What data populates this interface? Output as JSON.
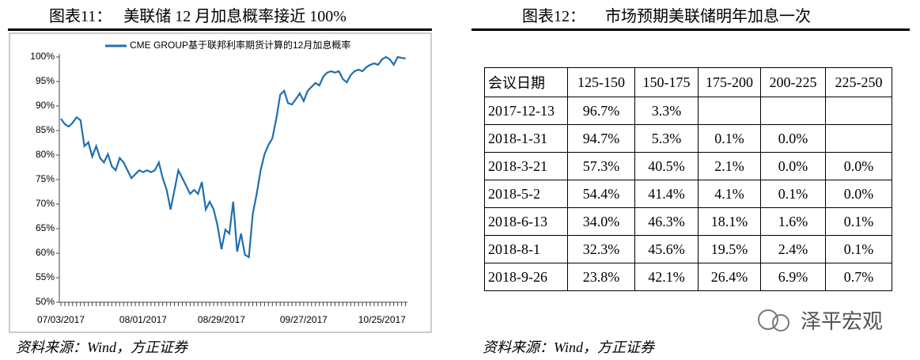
{
  "left": {
    "title": "图表11：   美联储 12 月加息概率接近 100%",
    "source": "资料来源：Wind，方正证券"
  },
  "chart_data": {
    "type": "line",
    "categories": [
      "07/03/2017",
      null,
      null,
      null,
      null,
      null,
      null,
      null,
      null,
      null,
      null,
      null,
      null,
      null,
      null,
      null,
      null,
      null,
      null,
      null,
      null,
      "08/01/2017",
      null,
      null,
      null,
      null,
      null,
      null,
      null,
      null,
      null,
      null,
      null,
      null,
      null,
      null,
      null,
      null,
      null,
      null,
      null,
      "08/29/2017",
      null,
      null,
      null,
      null,
      null,
      null,
      null,
      null,
      null,
      null,
      null,
      null,
      null,
      null,
      null,
      null,
      null,
      null,
      null,
      null,
      "09/27/2017",
      null,
      null,
      null,
      null,
      null,
      null,
      null,
      null,
      null,
      null,
      null,
      null,
      null,
      null,
      null,
      null,
      null,
      null,
      null,
      "10/25/2017",
      null,
      null,
      null,
      null,
      null,
      null
    ],
    "series": [
      {
        "name": "CME GROUP基于联邦利率期货计算的12月加息概率",
        "color": "#1f6fb0",
        "values": [
          87.4,
          86.3,
          85.8,
          86.6,
          87.7,
          87.1,
          81.8,
          82.6,
          79.7,
          81.8,
          79.4,
          78.5,
          80.2,
          77.7,
          76.9,
          79.4,
          78.5,
          76.9,
          75.3,
          76.1,
          76.9,
          76.5,
          76.9,
          76.5,
          76.9,
          78.5,
          75.3,
          72.9,
          68.9,
          72.9,
          76.9,
          75.3,
          73.7,
          72.1,
          72.9,
          72.1,
          74.5,
          68.9,
          70.5,
          68.9,
          65.6,
          60.8,
          64.8,
          64.0,
          70.5,
          60.3,
          64.0,
          59.7,
          59.2,
          68.1,
          72.1,
          76.9,
          80.2,
          82.1,
          83.4,
          87.4,
          92.3,
          93.1,
          90.6,
          90.3,
          91.4,
          92.6,
          91.0,
          93.1,
          93.9,
          94.7,
          94.2,
          96.0,
          96.8,
          97.1,
          96.8,
          97.1,
          95.5,
          94.8,
          96.3,
          97.1,
          97.4,
          97.1,
          97.9,
          98.4,
          98.7,
          98.4,
          99.5,
          100.0,
          99.5,
          98.4,
          100.0,
          99.8,
          99.7
        ]
      }
    ],
    "ylim": [
      50,
      100
    ],
    "yticks": [
      {
        "value": 50,
        "label": "50%"
      },
      {
        "value": 55,
        "label": "55%"
      },
      {
        "value": 60,
        "label": "60%"
      },
      {
        "value": 65,
        "label": "65%"
      },
      {
        "value": 70,
        "label": "70%"
      },
      {
        "value": 75,
        "label": "75%"
      },
      {
        "value": 80,
        "label": "80%"
      },
      {
        "value": 85,
        "label": "85%"
      },
      {
        "value": 90,
        "label": "90%"
      },
      {
        "value": 95,
        "label": "95%"
      },
      {
        "value": 100,
        "label": "100%"
      }
    ],
    "grid": false,
    "legend": "top"
  },
  "right": {
    "title": "图表12：     市场预期美联储明年加息一次",
    "source": "资料来源：Wind，方正证券"
  },
  "table": {
    "header": [
      "会议日期",
      "125-150",
      "150-175",
      "175-200",
      "200-225",
      "225-250"
    ],
    "rows": [
      [
        "2017-12-13",
        "96.7%",
        "3.3%",
        null,
        null,
        null
      ],
      [
        "2018-1-31",
        "94.7%",
        "5.3%",
        "0.1%",
        "0.0%",
        null
      ],
      [
        "2018-3-21",
        "57.3%",
        "40.5%",
        "2.1%",
        "0.0%",
        "0.0%"
      ],
      [
        "2018-5-2",
        "54.4%",
        "41.4%",
        "4.1%",
        "0.1%",
        "0.0%"
      ],
      [
        "2018-6-13",
        "34.0%",
        "46.3%",
        "18.1%",
        "1.6%",
        "0.1%"
      ],
      [
        "2018-8-1",
        "32.3%",
        "45.6%",
        "19.5%",
        "2.4%",
        "0.1%"
      ],
      [
        "2018-9-26",
        "23.8%",
        "42.1%",
        "26.4%",
        "6.9%",
        "0.7%"
      ]
    ]
  },
  "watermark": "泽平宏观"
}
